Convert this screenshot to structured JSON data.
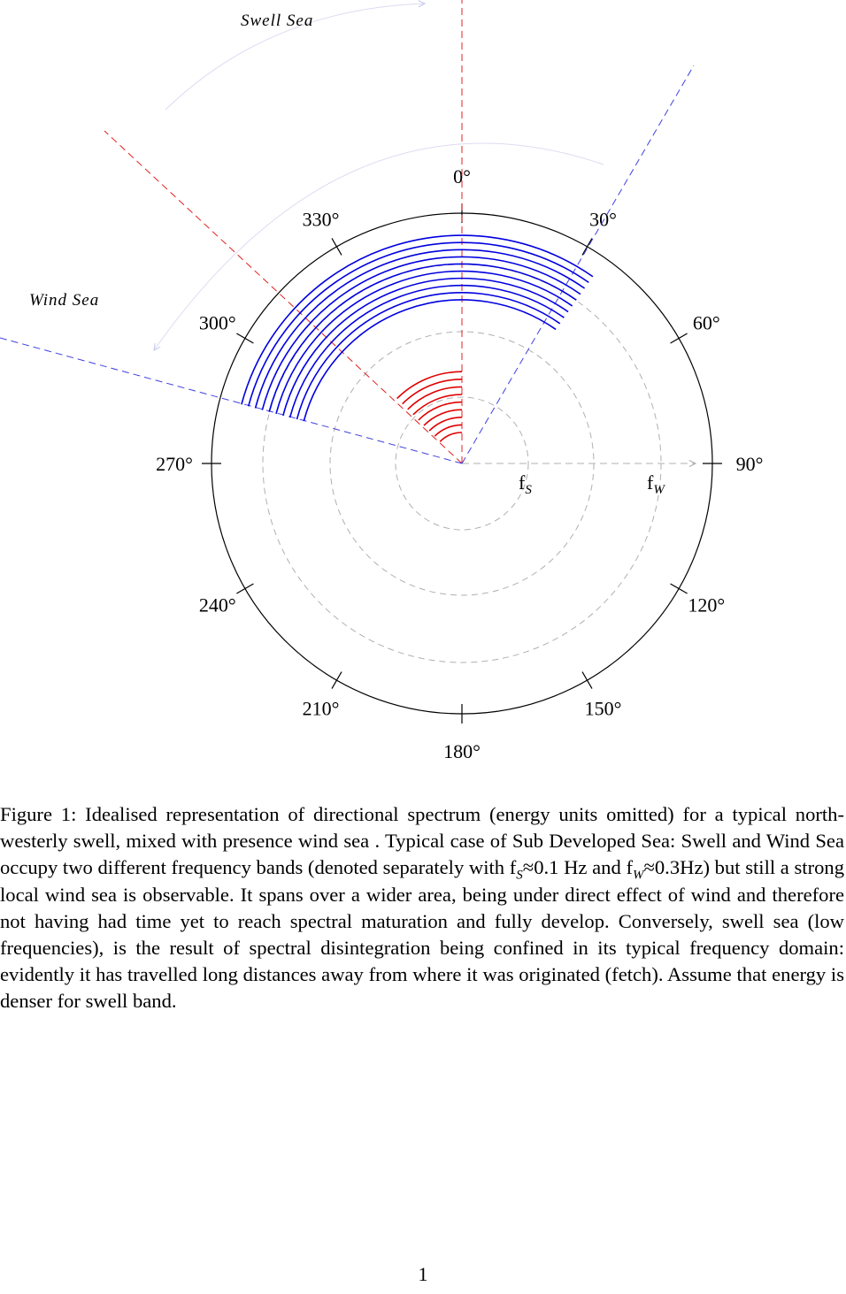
{
  "diagram": {
    "angle_labels": [
      "0°",
      "30°",
      "60°",
      "90°",
      "120°",
      "150°",
      "180°",
      "210°",
      "240°",
      "270°",
      "300°",
      "330°"
    ],
    "region_labels": {
      "swell": "Swell Sea",
      "wind": "Wind Sea"
    },
    "frequency_labels": {
      "swell_base": "f",
      "swell_sub": "S",
      "wind_base": "f",
      "wind_sub": "W"
    },
    "colors": {
      "swell": "#e00000",
      "wind": "#0000e0",
      "guide": "#b0b0b0",
      "outline": "#000000"
    },
    "swell_band": {
      "direction_from_deg": [
        315,
        360
      ],
      "frequency_hz": 0.1
    },
    "wind_band": {
      "direction_from_deg": [
        285,
        35
      ],
      "frequency_hz": 0.3
    }
  },
  "caption": {
    "p1": "Figure 1: Idealised representation of directional spectrum (energy units omitted) for a typical north-westerly swell, mixed with presence wind sea . Typical case of Sub Developed Sea: Swell and Wind Sea occupy two different frequency bands (denoted separately with f",
    "s_sub": "S",
    "p2": "≈0.1 Hz and f",
    "w_sub": "W",
    "p3": "≈0.3Hz) but still a strong local wind sea is observable. It spans over a wider area, being under direct effect of wind and therefore not having had time yet to reach spectral maturation and fully develop. Conversely, swell sea (low frequencies), is the result of spectral disintegration being confined in its typical frequency domain: evidently it has travelled long distances away from where it was originated (fetch). Assume that energy is denser for swell band."
  },
  "page_number": "1"
}
